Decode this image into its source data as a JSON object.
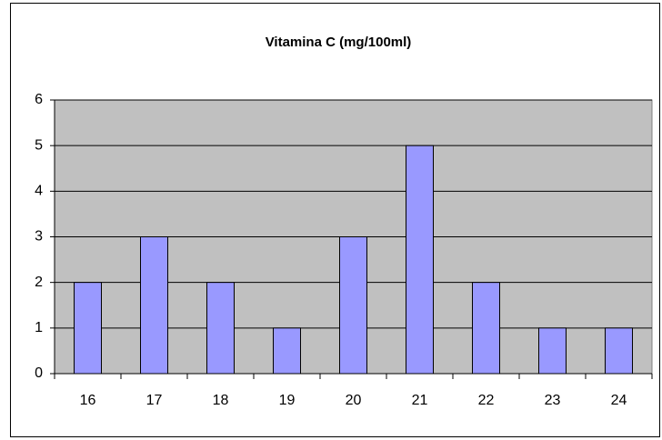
{
  "chart_data": {
    "type": "bar",
    "title": "Vitamina C (mg/100ml)",
    "categories": [
      "16",
      "17",
      "18",
      "19",
      "20",
      "21",
      "22",
      "23",
      "24"
    ],
    "values": [
      2,
      3,
      2,
      1,
      3,
      5,
      2,
      1,
      1
    ],
    "color": "#9999ff",
    "ylim": [
      0,
      6
    ],
    "yticks": [
      0,
      1,
      2,
      3,
      4,
      5,
      6
    ],
    "grid": true
  }
}
